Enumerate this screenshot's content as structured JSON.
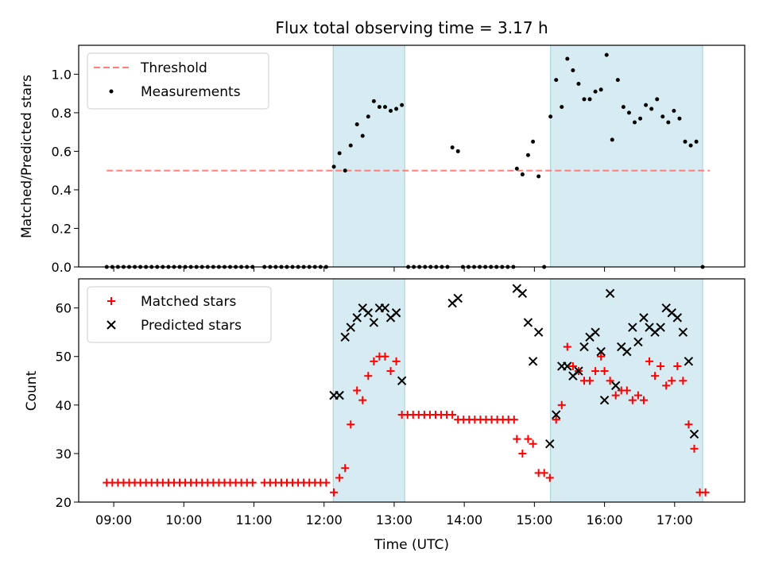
{
  "chart_data": [
    {
      "type": "scatter",
      "title": "Flux total observing time = 3.17 h",
      "xlabel": "",
      "ylabel": "Matched/Predicted stars",
      "xlim": [
        8.5,
        18.0
      ],
      "ylim": [
        0.0,
        1.15
      ],
      "yticks": [
        0.0,
        0.2,
        0.4,
        0.6,
        0.8,
        1.0
      ],
      "ytick_labels": [
        "0.0",
        "0.2",
        "0.4",
        "0.6",
        "0.8",
        "1.0"
      ],
      "xticks": [
        9,
        10,
        11,
        12,
        13,
        14,
        15,
        16,
        17
      ],
      "legend": {
        "placement": "top-left",
        "entries": [
          "Threshold",
          "Measurements"
        ]
      },
      "shaded_intervals": [
        [
          12.13,
          13.15
        ],
        [
          15.23,
          17.4
        ]
      ],
      "threshold": {
        "name": "Threshold",
        "value": 0.5,
        "x_range": [
          8.9,
          17.5
        ],
        "style": "dashed",
        "color": "#ff7f7f"
      },
      "series": [
        {
          "name": "Measurements",
          "color": "#000000",
          "points": [
            [
              8.9,
              0
            ],
            [
              8.98,
              0
            ],
            [
              9.06,
              0
            ],
            [
              9.14,
              0
            ],
            [
              9.22,
              0
            ],
            [
              9.3,
              0
            ],
            [
              9.38,
              0
            ],
            [
              9.46,
              0
            ],
            [
              9.54,
              0
            ],
            [
              9.62,
              0
            ],
            [
              9.7,
              0
            ],
            [
              9.78,
              0
            ],
            [
              9.86,
              0
            ],
            [
              9.94,
              0
            ],
            [
              10.02,
              0
            ],
            [
              10.1,
              0
            ],
            [
              10.18,
              0
            ],
            [
              10.26,
              0
            ],
            [
              10.34,
              0
            ],
            [
              10.42,
              0
            ],
            [
              10.5,
              0
            ],
            [
              10.58,
              0
            ],
            [
              10.66,
              0
            ],
            [
              10.74,
              0
            ],
            [
              10.82,
              0
            ],
            [
              10.9,
              0
            ],
            [
              10.98,
              0
            ],
            [
              11.15,
              0
            ],
            [
              11.23,
              0
            ],
            [
              11.31,
              0
            ],
            [
              11.39,
              0
            ],
            [
              11.47,
              0
            ],
            [
              11.55,
              0
            ],
            [
              11.63,
              0
            ],
            [
              11.71,
              0
            ],
            [
              11.79,
              0
            ],
            [
              11.87,
              0
            ],
            [
              11.95,
              0
            ],
            [
              12.03,
              0
            ],
            [
              12.14,
              0.52
            ],
            [
              12.22,
              0.59
            ],
            [
              12.3,
              0.5
            ],
            [
              12.38,
              0.63
            ],
            [
              12.47,
              0.74
            ],
            [
              12.55,
              0.68
            ],
            [
              12.63,
              0.78
            ],
            [
              12.71,
              0.86
            ],
            [
              12.79,
              0.83
            ],
            [
              12.87,
              0.83
            ],
            [
              12.95,
              0.81
            ],
            [
              13.03,
              0.82
            ],
            [
              13.11,
              0.84
            ],
            [
              13.2,
              0
            ],
            [
              13.28,
              0
            ],
            [
              13.36,
              0
            ],
            [
              13.44,
              0
            ],
            [
              13.52,
              0
            ],
            [
              13.6,
              0
            ],
            [
              13.68,
              0
            ],
            [
              13.76,
              0
            ],
            [
              13.83,
              0.62
            ],
            [
              13.91,
              0.6
            ],
            [
              13.98,
              0
            ],
            [
              14.06,
              0
            ],
            [
              14.14,
              0
            ],
            [
              14.22,
              0
            ],
            [
              14.3,
              0
            ],
            [
              14.38,
              0
            ],
            [
              14.46,
              0
            ],
            [
              14.54,
              0
            ],
            [
              14.62,
              0
            ],
            [
              14.7,
              0
            ],
            [
              14.75,
              0.51
            ],
            [
              14.83,
              0.48
            ],
            [
              14.91,
              0.58
            ],
            [
              14.98,
              0.65
            ],
            [
              15.06,
              0.47
            ],
            [
              15.14,
              0
            ],
            [
              15.23,
              0.78
            ],
            [
              15.31,
              0.97
            ],
            [
              15.39,
              0.83
            ],
            [
              15.47,
              1.08
            ],
            [
              15.55,
              1.02
            ],
            [
              15.63,
              0.95
            ],
            [
              15.71,
              0.87
            ],
            [
              15.79,
              0.87
            ],
            [
              15.87,
              0.91
            ],
            [
              15.95,
              0.92
            ],
            [
              16.03,
              1.1
            ],
            [
              16.11,
              0.66
            ],
            [
              16.19,
              0.97
            ],
            [
              16.27,
              0.83
            ],
            [
              16.35,
              0.8
            ],
            [
              16.43,
              0.75
            ],
            [
              16.51,
              0.77
            ],
            [
              16.59,
              0.84
            ],
            [
              16.67,
              0.82
            ],
            [
              16.75,
              0.87
            ],
            [
              16.83,
              0.78
            ],
            [
              16.91,
              0.75
            ],
            [
              16.99,
              0.81
            ],
            [
              17.07,
              0.77
            ],
            [
              17.15,
              0.65
            ],
            [
              17.23,
              0.63
            ],
            [
              17.31,
              0.65
            ],
            [
              17.4,
              0
            ]
          ]
        }
      ]
    },
    {
      "type": "scatter",
      "title": "",
      "xlabel": "Time (UTC)",
      "ylabel": "Count",
      "xlim": [
        8.5,
        18.0
      ],
      "ylim": [
        20,
        66
      ],
      "yticks": [
        20,
        30,
        40,
        50,
        60
      ],
      "ytick_labels": [
        "20",
        "30",
        "40",
        "50",
        "60"
      ],
      "xticks": [
        9,
        10,
        11,
        12,
        13,
        14,
        15,
        16,
        17
      ],
      "xtick_labels": [
        "09:00",
        "10:00",
        "11:00",
        "12:00",
        "13:00",
        "14:00",
        "15:00",
        "16:00",
        "17:00"
      ],
      "legend": {
        "placement": "top-left",
        "entries": [
          "Matched stars",
          "Predicted stars"
        ]
      },
      "shaded_intervals": [
        [
          12.13,
          13.15
        ],
        [
          15.23,
          17.4
        ]
      ],
      "series": [
        {
          "name": "Matched stars",
          "marker": "plus",
          "color": "#ff0000",
          "points": [
            [
              8.9,
              24
            ],
            [
              8.98,
              24
            ],
            [
              9.06,
              24
            ],
            [
              9.14,
              24
            ],
            [
              9.22,
              24
            ],
            [
              9.3,
              24
            ],
            [
              9.38,
              24
            ],
            [
              9.46,
              24
            ],
            [
              9.54,
              24
            ],
            [
              9.62,
              24
            ],
            [
              9.7,
              24
            ],
            [
              9.78,
              24
            ],
            [
              9.86,
              24
            ],
            [
              9.94,
              24
            ],
            [
              10.02,
              24
            ],
            [
              10.1,
              24
            ],
            [
              10.18,
              24
            ],
            [
              10.26,
              24
            ],
            [
              10.34,
              24
            ],
            [
              10.42,
              24
            ],
            [
              10.5,
              24
            ],
            [
              10.58,
              24
            ],
            [
              10.66,
              24
            ],
            [
              10.74,
              24
            ],
            [
              10.82,
              24
            ],
            [
              10.9,
              24
            ],
            [
              10.98,
              24
            ],
            [
              11.15,
              24
            ],
            [
              11.23,
              24
            ],
            [
              11.31,
              24
            ],
            [
              11.39,
              24
            ],
            [
              11.47,
              24
            ],
            [
              11.55,
              24
            ],
            [
              11.63,
              24
            ],
            [
              11.71,
              24
            ],
            [
              11.79,
              24
            ],
            [
              11.87,
              24
            ],
            [
              11.95,
              24
            ],
            [
              12.03,
              24
            ],
            [
              12.14,
              22
            ],
            [
              12.22,
              25
            ],
            [
              12.3,
              27
            ],
            [
              12.38,
              36
            ],
            [
              12.47,
              43
            ],
            [
              12.55,
              41
            ],
            [
              12.63,
              46
            ],
            [
              12.71,
              49
            ],
            [
              12.79,
              50
            ],
            [
              12.87,
              50
            ],
            [
              12.95,
              47
            ],
            [
              13.03,
              49
            ],
            [
              13.11,
              38
            ],
            [
              13.19,
              38
            ],
            [
              13.27,
              38
            ],
            [
              13.35,
              38
            ],
            [
              13.43,
              38
            ],
            [
              13.51,
              38
            ],
            [
              13.59,
              38
            ],
            [
              13.67,
              38
            ],
            [
              13.75,
              38
            ],
            [
              13.83,
              38
            ],
            [
              13.91,
              37
            ],
            [
              13.99,
              37
            ],
            [
              14.07,
              37
            ],
            [
              14.15,
              37
            ],
            [
              14.23,
              37
            ],
            [
              14.31,
              37
            ],
            [
              14.39,
              37
            ],
            [
              14.47,
              37
            ],
            [
              14.55,
              37
            ],
            [
              14.63,
              37
            ],
            [
              14.71,
              37
            ],
            [
              14.75,
              33
            ],
            [
              14.83,
              30
            ],
            [
              14.91,
              33
            ],
            [
              14.98,
              32
            ],
            [
              15.06,
              26
            ],
            [
              15.14,
              26
            ],
            [
              15.22,
              25
            ],
            [
              15.31,
              37
            ],
            [
              15.39,
              40
            ],
            [
              15.47,
              52
            ],
            [
              15.55,
              48
            ],
            [
              15.63,
              47
            ],
            [
              15.71,
              45
            ],
            [
              15.79,
              45
            ],
            [
              15.87,
              47
            ],
            [
              15.95,
              50
            ],
            [
              16.0,
              47
            ],
            [
              16.08,
              45
            ],
            [
              16.16,
              42
            ],
            [
              16.24,
              43
            ],
            [
              16.32,
              43
            ],
            [
              16.4,
              41
            ],
            [
              16.48,
              42
            ],
            [
              16.56,
              41
            ],
            [
              16.64,
              49
            ],
            [
              16.72,
              46
            ],
            [
              16.8,
              48
            ],
            [
              16.88,
              44
            ],
            [
              16.96,
              45
            ],
            [
              17.04,
              48
            ],
            [
              17.12,
              45
            ],
            [
              17.2,
              36
            ],
            [
              17.28,
              31
            ],
            [
              17.36,
              22
            ],
            [
              17.44,
              22
            ]
          ]
        },
        {
          "name": "Predicted stars",
          "marker": "x",
          "color": "#000000",
          "points": [
            [
              12.14,
              42
            ],
            [
              12.22,
              42
            ],
            [
              12.3,
              54
            ],
            [
              12.38,
              56
            ],
            [
              12.47,
              58
            ],
            [
              12.55,
              60
            ],
            [
              12.63,
              59
            ],
            [
              12.71,
              57
            ],
            [
              12.79,
              60
            ],
            [
              12.87,
              60
            ],
            [
              12.95,
              58
            ],
            [
              13.03,
              59
            ],
            [
              13.11,
              45
            ],
            [
              13.83,
              61
            ],
            [
              13.91,
              62
            ],
            [
              14.75,
              64
            ],
            [
              14.83,
              63
            ],
            [
              14.91,
              57
            ],
            [
              14.98,
              49
            ],
            [
              15.06,
              55
            ],
            [
              15.22,
              32
            ],
            [
              15.31,
              38
            ],
            [
              15.39,
              48
            ],
            [
              15.47,
              48
            ],
            [
              15.55,
              46
            ],
            [
              15.63,
              47
            ],
            [
              15.71,
              52
            ],
            [
              15.79,
              54
            ],
            [
              15.87,
              55
            ],
            [
              15.95,
              51
            ],
            [
              16.0,
              41
            ],
            [
              16.08,
              63
            ],
            [
              16.16,
              44
            ],
            [
              16.24,
              52
            ],
            [
              16.32,
              51
            ],
            [
              16.4,
              56
            ],
            [
              16.48,
              53
            ],
            [
              16.56,
              58
            ],
            [
              16.64,
              56
            ],
            [
              16.72,
              55
            ],
            [
              16.8,
              56
            ],
            [
              16.88,
              60
            ],
            [
              16.96,
              59
            ],
            [
              17.04,
              58
            ],
            [
              17.12,
              55
            ],
            [
              17.2,
              49
            ],
            [
              17.28,
              34
            ]
          ]
        }
      ]
    }
  ]
}
